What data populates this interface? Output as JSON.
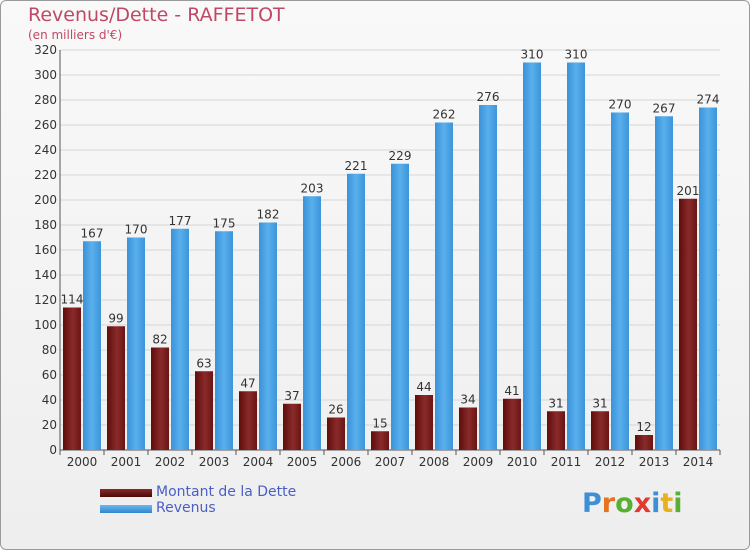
{
  "chart_data": {
    "type": "bar",
    "title": "Revenus/Dette - RAFFETOT",
    "subtitle": "(en milliers d'€)",
    "categories": [
      "2000",
      "2001",
      "2002",
      "2003",
      "2004",
      "2005",
      "2006",
      "2007",
      "2008",
      "2009",
      "2010",
      "2011",
      "2012",
      "2013",
      "2014"
    ],
    "series": [
      {
        "name": "Montant de la Dette",
        "color": "#7a1f1f",
        "values": [
          114,
          99,
          82,
          63,
          47,
          37,
          26,
          15,
          44,
          34,
          41,
          31,
          31,
          12,
          201
        ]
      },
      {
        "name": "Revenus",
        "color": "#4aa3e4",
        "values": [
          167,
          170,
          177,
          175,
          182,
          203,
          221,
          229,
          262,
          276,
          310,
          310,
          270,
          267,
          274
        ]
      }
    ],
    "ylim": [
      0,
      320
    ],
    "yticks": [
      0,
      20,
      40,
      60,
      80,
      100,
      120,
      140,
      160,
      180,
      200,
      220,
      240,
      260,
      280,
      300,
      320
    ],
    "grid": true,
    "legend_position": "bottom-left"
  },
  "logo": {
    "text": "Proxiti",
    "letters": [
      {
        "char": "P",
        "color": "#3d8fd6"
      },
      {
        "char": "r",
        "color": "#e8731f"
      },
      {
        "char": "o",
        "color": "#58b030"
      },
      {
        "char": "x",
        "color": "#e23a2e"
      },
      {
        "char": "i",
        "color": "#3d8fd6"
      },
      {
        "char": "t",
        "color": "#e8b11f"
      },
      {
        "char": "i",
        "color": "#58b030"
      }
    ]
  }
}
